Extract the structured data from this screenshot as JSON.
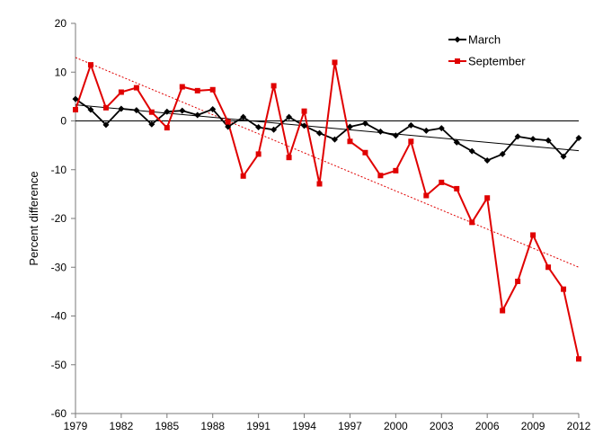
{
  "chart_data": {
    "type": "line",
    "title": "",
    "xlabel": "",
    "ylabel": "Percent difference",
    "ylim": [
      -60,
      20
    ],
    "yticks": [
      20,
      10,
      0,
      -10,
      -20,
      -30,
      -40,
      -50,
      -60
    ],
    "xlim": [
      1979,
      2012
    ],
    "xticks": [
      1979,
      1982,
      1985,
      1988,
      1991,
      1994,
      1997,
      2000,
      2003,
      2006,
      2009,
      2012
    ],
    "legend_position": "top-right",
    "grid": false,
    "x": [
      1979,
      1980,
      1981,
      1982,
      1983,
      1984,
      1985,
      1986,
      1987,
      1988,
      1989,
      1990,
      1991,
      1992,
      1993,
      1994,
      1995,
      1996,
      1997,
      1998,
      1999,
      2000,
      2001,
      2002,
      2003,
      2004,
      2005,
      2006,
      2007,
      2008,
      2009,
      2010,
      2011,
      2012
    ],
    "series": [
      {
        "name": "March",
        "color": "#000000",
        "marker": "diamond",
        "values": [
          4.5,
          2.3,
          -0.8,
          2.5,
          2.2,
          -0.7,
          1.9,
          2.1,
          1.2,
          2.4,
          -1.2,
          0.8,
          -1.3,
          -1.8,
          0.8,
          -1.0,
          -2.5,
          -3.8,
          -1.2,
          -0.5,
          -2.2,
          -3.0,
          -0.9,
          -2.0,
          -1.5,
          -4.4,
          -6.2,
          -8.1,
          -6.8,
          -3.2,
          -3.7,
          -4.0,
          -7.3,
          -3.5
        ]
      },
      {
        "name": "September",
        "color": "#e00000",
        "marker": "square",
        "values": [
          2.3,
          11.5,
          2.7,
          5.9,
          6.8,
          1.8,
          -1.4,
          7.0,
          6.2,
          6.4,
          -0.2,
          -11.3,
          -6.8,
          7.2,
          -7.5,
          2.0,
          -12.9,
          12.0,
          -4.2,
          -6.5,
          -11.2,
          -10.2,
          -4.2,
          -15.3,
          -12.6,
          -13.9,
          -20.8,
          -15.8,
          -38.9,
          -32.9,
          -23.4,
          -30.0,
          -34.5,
          -48.8
        ]
      }
    ],
    "trendlines": [
      {
        "series": "March",
        "color": "#000000",
        "x": [
          1979,
          2012
        ],
        "y": [
          3.3,
          -6.1
        ]
      },
      {
        "series": "September",
        "color": "#e00000",
        "style": "dotted",
        "x": [
          1979,
          2012
        ],
        "y": [
          13.0,
          -30.0
        ]
      }
    ]
  }
}
